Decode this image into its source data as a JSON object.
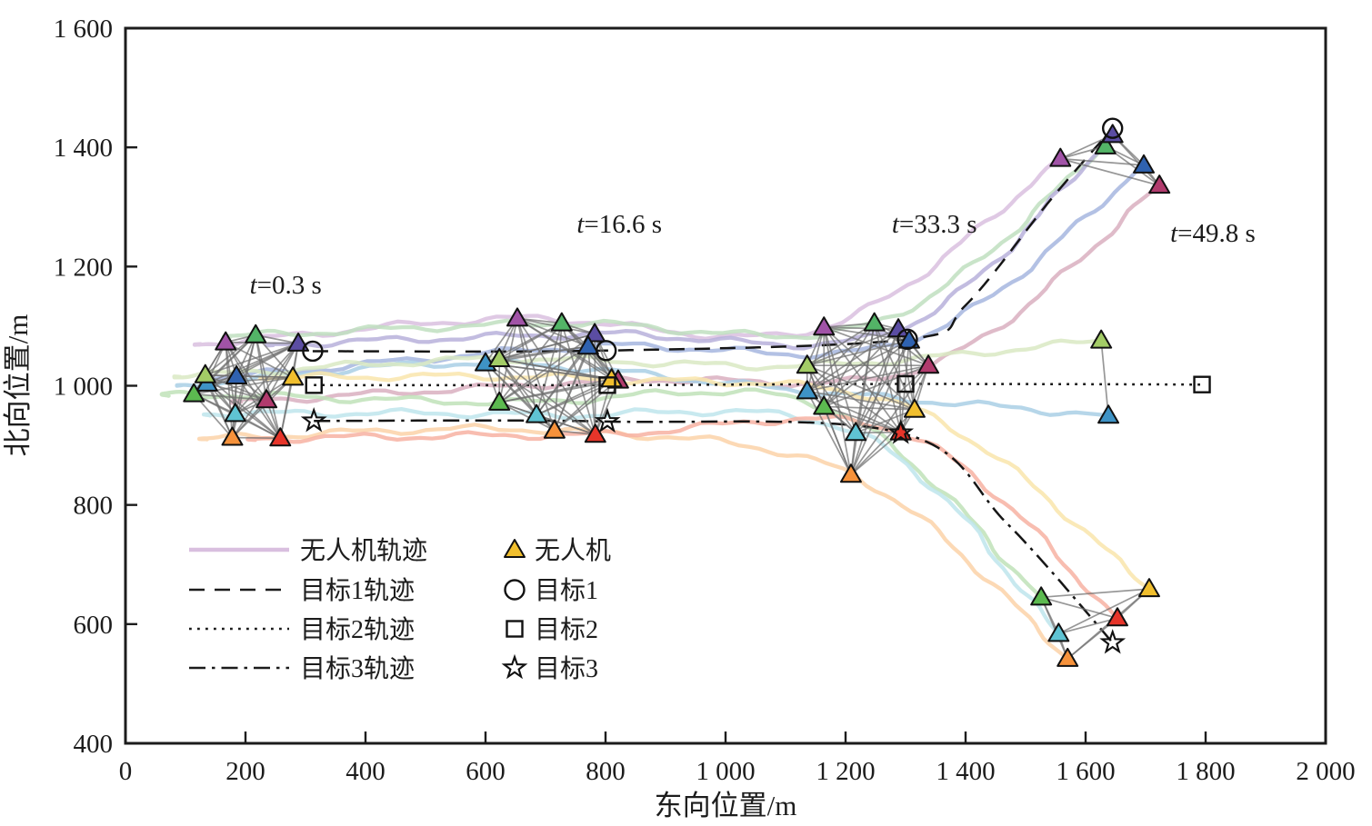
{
  "chart_data": {
    "type": "scatter",
    "title": "",
    "xlabel": "东向位置/m",
    "ylabel": "北向位置/m",
    "xlim": [
      0,
      2000
    ],
    "ylim": [
      400,
      1600
    ],
    "xticks": [
      0,
      200,
      400,
      600,
      800,
      1000,
      1200,
      1400,
      1600,
      1800,
      2000
    ],
    "yticks": [
      400,
      600,
      800,
      1000,
      1200,
      1400,
      1600
    ],
    "tick_format": "space-thousands",
    "grid": false,
    "frame_color": "#1c1c1c",
    "comm_link_color": "#6f6f6f",
    "annotations": [
      {
        "label": "t=0.3 s",
        "x": 267,
        "y": 1170
      },
      {
        "label": "t=16.6 s",
        "x": 823,
        "y": 1272
      },
      {
        "label": "t=33.3 s",
        "x": 1348,
        "y": 1272
      },
      {
        "label": "t=49.8 s",
        "x": 1812,
        "y": 1257
      }
    ],
    "uavs": [
      {
        "name": "uav-purple",
        "marker_color": "#a153a7",
        "traj_color": "#d9bfdf",
        "waypoints": [
          [
            167,
            1073
          ],
          [
            653,
            1113
          ],
          [
            1164,
            1098
          ],
          [
            1558,
            1381
          ]
        ]
      },
      {
        "name": "uav-green",
        "marker_color": "#53b467",
        "traj_color": "#bfdfc0",
        "waypoints": [
          [
            217,
            1085
          ],
          [
            727,
            1105
          ],
          [
            1248,
            1105
          ],
          [
            1633,
            1402
          ]
        ]
      },
      {
        "name": "uav-indigo",
        "marker_color": "#5b4da3",
        "traj_color": "#b7b0da",
        "waypoints": [
          [
            288,
            1071
          ],
          [
            782,
            1087
          ],
          [
            1288,
            1095
          ],
          [
            1645,
            1421
          ]
        ]
      },
      {
        "name": "uav-blue",
        "marker_color": "#2f62b0",
        "traj_color": "#a6b6df",
        "waypoints": [
          [
            185,
            1016
          ],
          [
            771,
            1066
          ],
          [
            1306,
            1076
          ],
          [
            1697,
            1370
          ]
        ]
      },
      {
        "name": "uav-crimson",
        "marker_color": "#b13b6d",
        "traj_color": "#d9afc0",
        "waypoints": [
          [
            235,
            976
          ],
          [
            821,
            1009
          ],
          [
            1338,
            1034
          ],
          [
            1723,
            1336
          ]
        ]
      },
      {
        "name": "uav-steelblue",
        "marker_color": "#3e93c6",
        "traj_color": "#a9cfe5",
        "waypoints": [
          [
            136,
            1004
          ],
          [
            600,
            1038
          ],
          [
            1136,
            991
          ],
          [
            1638,
            950
          ]
        ]
      },
      {
        "name": "uav-lightgreen",
        "marker_color": "#a3cc66",
        "traj_color": "#d9e9c3",
        "waypoints": [
          [
            133,
            1018
          ],
          [
            623,
            1045
          ],
          [
            1136,
            1034
          ],
          [
            1626,
            1076
          ]
        ]
      },
      {
        "name": "uav-green2",
        "marker_color": "#5cba50",
        "traj_color": "#c0e2b8",
        "waypoints": [
          [
            114,
            986
          ],
          [
            623,
            972
          ],
          [
            1164,
            965
          ],
          [
            1526,
            645
          ]
        ]
      },
      {
        "name": "uav-cyan",
        "marker_color": "#5fc3d3",
        "traj_color": "#bee5ec",
        "waypoints": [
          [
            183,
            953
          ],
          [
            685,
            951
          ],
          [
            1217,
            921
          ],
          [
            1555,
            584
          ]
        ]
      },
      {
        "name": "uav-orange",
        "marker_color": "#f6923b",
        "traj_color": "#fcd2a8",
        "waypoints": [
          [
            178,
            913
          ],
          [
            715,
            925
          ],
          [
            1209,
            851
          ],
          [
            1570,
            542
          ]
        ]
      },
      {
        "name": "uav-red",
        "marker_color": "#e7352a",
        "traj_color": "#f7b2a2",
        "waypoints": [
          [
            258,
            912
          ],
          [
            783,
            918
          ],
          [
            1292,
            922
          ],
          [
            1653,
            610
          ]
        ]
      },
      {
        "name": "uav-yellow",
        "marker_color": "#f1bf2e",
        "traj_color": "#f9e5ab",
        "waypoints": [
          [
            279,
            1014
          ],
          [
            810,
            1011
          ],
          [
            1315,
            960
          ],
          [
            1706,
            659
          ]
        ]
      }
    ],
    "targets": [
      {
        "name": "目标1",
        "marker": "circle",
        "line_style": "dashed",
        "marker_points": [
          [
            312,
            1058
          ],
          [
            801,
            1059
          ],
          [
            1303,
            1078
          ],
          [
            1645,
            1432
          ]
        ],
        "path": [
          [
            312,
            1058
          ],
          [
            801,
            1059
          ],
          [
            1303,
            1078
          ],
          [
            1400,
            1135
          ],
          [
            1540,
            1310
          ],
          [
            1645,
            1432
          ]
        ]
      },
      {
        "name": "目标2",
        "marker": "square",
        "line_style": "dotted",
        "marker_points": [
          [
            314,
            1001
          ],
          [
            803,
            1001
          ],
          [
            1300,
            1003
          ],
          [
            1794,
            1002
          ]
        ],
        "path": [
          [
            314,
            1001
          ],
          [
            803,
            1001
          ],
          [
            1300,
            1003
          ],
          [
            1794,
            1002
          ]
        ]
      },
      {
        "name": "目标3",
        "marker": "star",
        "line_style": "dashdot",
        "marker_points": [
          [
            314,
            941
          ],
          [
            803,
            940
          ],
          [
            1292,
            921
          ],
          [
            1645,
            569
          ]
        ],
        "path": [
          [
            314,
            941
          ],
          [
            803,
            940
          ],
          [
            1292,
            921
          ],
          [
            1468,
            770
          ],
          [
            1645,
            569
          ]
        ]
      }
    ],
    "comm_links": [
      {
        "epoch": 0,
        "members": [
          0,
          1,
          2,
          3,
          4,
          5,
          6,
          7,
          8,
          9,
          10,
          11
        ]
      },
      {
        "epoch": 1,
        "members": [
          0,
          1,
          2,
          3,
          4,
          5,
          6,
          7,
          8,
          9,
          10,
          11
        ]
      },
      {
        "epoch": 2,
        "members": [
          0,
          1,
          2,
          3,
          4,
          5,
          6,
          7,
          8,
          9,
          10,
          11
        ]
      },
      {
        "epoch": 3,
        "members": [
          0,
          1,
          2,
          3,
          4
        ]
      },
      {
        "epoch": 3,
        "members": [
          5,
          6
        ]
      },
      {
        "epoch": 3,
        "members": [
          7,
          8,
          9,
          10,
          11
        ]
      }
    ],
    "legend": {
      "lines": [
        {
          "label": "无人机轨迹",
          "style": "solid",
          "color": "#d9bfdf"
        },
        {
          "label": "目标1轨迹",
          "style": "dashed",
          "color": "#1c1c1c"
        },
        {
          "label": "目标2轨迹",
          "style": "dotted",
          "color": "#1c1c1c"
        },
        {
          "label": "目标3轨迹",
          "style": "dashdot",
          "color": "#1c1c1c"
        }
      ],
      "markers": [
        {
          "label": "无人机",
          "shape": "triangle",
          "fill": "#f1bf2e"
        },
        {
          "label": "目标1",
          "shape": "circle",
          "fill": "none"
        },
        {
          "label": "目标2",
          "shape": "square",
          "fill": "none"
        },
        {
          "label": "目标3",
          "shape": "star",
          "fill": "none"
        }
      ]
    }
  }
}
